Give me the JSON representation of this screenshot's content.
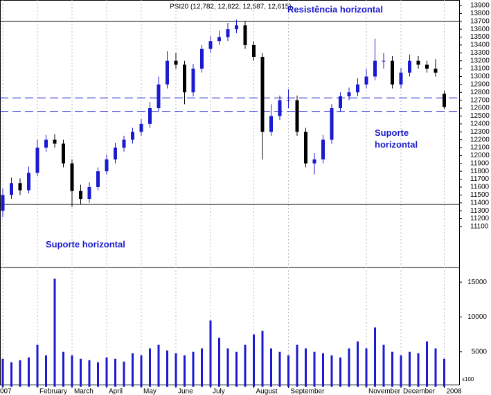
{
  "chart_data": {
    "type": "candlestick",
    "title": "PSI20 (12,782, 12,822, 12,587, 12,615)",
    "categories": [
      "007",
      null,
      null,
      null,
      "February",
      null,
      null,
      null,
      "March",
      null,
      null,
      null,
      "April",
      null,
      null,
      null,
      "May",
      null,
      null,
      null,
      "June",
      null,
      null,
      null,
      "July",
      null,
      null,
      null,
      null,
      "August",
      null,
      null,
      null,
      "September",
      null,
      null,
      null,
      null,
      null,
      null,
      null,
      null,
      "November",
      null,
      null,
      null,
      "December",
      null,
      null,
      null,
      null,
      "2008"
    ],
    "open": [
      11300,
      11500,
      11650,
      11560,
      11780,
      12100,
      12200,
      12150,
      11900,
      11550,
      11450,
      11600,
      11800,
      11950,
      12100,
      12200,
      12300,
      12400,
      12600,
      12900,
      13200,
      13150,
      12800,
      13100,
      13350,
      13450,
      13500,
      13600,
      13650,
      13400,
      13250,
      12300,
      12500,
      12700,
      12700,
      12300,
      11900,
      11950,
      12200,
      12600,
      12750,
      12800,
      12900,
      13000,
      13200,
      13200,
      12900,
      13050,
      13200,
      13150,
      13100,
      12782
    ],
    "high": [
      11580,
      11720,
      11710,
      11860,
      12200,
      12260,
      12270,
      12200,
      11950,
      11630,
      11660,
      11850,
      12010,
      12160,
      12250,
      12350,
      12460,
      12680,
      13000,
      13320,
      13300,
      13200,
      13160,
      13400,
      13510,
      13580,
      13680,
      13720,
      13700,
      13450,
      13300,
      12650,
      12760,
      12840,
      12760,
      12350,
      12030,
      12260,
      12650,
      12800,
      12860,
      12980,
      13100,
      13480,
      13300,
      13260,
      13110,
      13280,
      13260,
      13200,
      13220,
      12822
    ],
    "low": [
      11220,
      11450,
      11500,
      11520,
      11740,
      12050,
      12100,
      11850,
      11350,
      11380,
      11400,
      11560,
      11760,
      11900,
      12050,
      12150,
      12250,
      12350,
      12550,
      12850,
      13100,
      12650,
      12750,
      13050,
      13300,
      13400,
      13450,
      13550,
      13350,
      13200,
      11950,
      12250,
      12450,
      12600,
      12250,
      11850,
      11760,
      11900,
      12150,
      12550,
      12700,
      12750,
      12850,
      12950,
      13100,
      12850,
      12850,
      13000,
      13100,
      13050,
      13000,
      12587
    ],
    "close": [
      11500,
      11650,
      11560,
      11780,
      12100,
      12200,
      12150,
      11900,
      11550,
      11450,
      11600,
      11800,
      11950,
      12100,
      12200,
      12300,
      12400,
      12600,
      12900,
      13200,
      13150,
      12800,
      13100,
      13350,
      13450,
      13500,
      13600,
      13650,
      13400,
      13250,
      12300,
      12500,
      12700,
      12700,
      12300,
      11900,
      11950,
      12200,
      12600,
      12750,
      12800,
      12900,
      13000,
      13200,
      13200,
      12900,
      13050,
      13200,
      13150,
      13100,
      13050,
      12615
    ],
    "volume": [
      4000,
      3500,
      3800,
      4200,
      6000,
      4500,
      15500,
      5000,
      4500,
      4000,
      3800,
      3500,
      4200,
      4000,
      3600,
      4800,
      4500,
      5500,
      6000,
      5200,
      4800,
      4500,
      5000,
      5500,
      9500,
      7000,
      5500,
      5000,
      6000,
      7500,
      8000,
      5500,
      5000,
      4500,
      6000,
      5500,
      5000,
      4800,
      4500,
      4200,
      5500,
      6500,
      5500,
      8500,
      6000,
      5000,
      4500,
      5000,
      4800,
      6500,
      5500,
      4000
    ],
    "up_color": "#1a1ad0",
    "down_color": "#000000",
    "volume_color": "#1a1ad0",
    "ylim": [
      10590,
      13970
    ],
    "yticks": [
      11100,
      11200,
      11300,
      11400,
      11500,
      11600,
      11700,
      11800,
      11900,
      12000,
      12100,
      12200,
      12300,
      12400,
      12500,
      12600,
      12700,
      12800,
      12900,
      13000,
      13100,
      13200,
      13300,
      13400,
      13500,
      13600,
      13700,
      13800,
      13900
    ],
    "volume_ylim": [
      0,
      16900
    ],
    "volume_yticks": [
      5000,
      10000,
      15000
    ],
    "volume_unit": "x100",
    "hlines": [
      {
        "value": 13700,
        "dashed": false
      },
      {
        "value": 11380,
        "dashed": false
      },
      {
        "value": 12730,
        "dashed": true
      },
      {
        "value": 12560,
        "dashed": true
      }
    ],
    "annotations": [
      [
        "Resistência horizontal"
      ],
      [
        "Suporte horizontal"
      ],
      [
        "Suporte",
        "horizontal"
      ]
    ],
    "grid": true
  }
}
